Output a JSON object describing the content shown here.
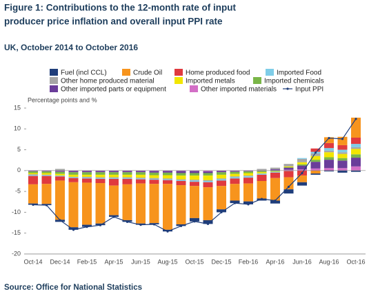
{
  "chart_data": {
    "type": "bar",
    "title": [
      "Figure 1: Contributions to the 12-month rate of input",
      "producer price inflation and overall input PPI rate"
    ],
    "subtitle": "UK, October 2014 to October 2016",
    "y_label": "Percentage points and %",
    "source": "Source: Office for National Statistics",
    "categories": [
      "Oct-14",
      null,
      "Dec-14",
      null,
      "Feb-15",
      null,
      "Apr-15",
      null,
      "Jun-15",
      null,
      "Aug-15",
      null,
      "Oct-15",
      null,
      "Dec-15",
      null,
      "Feb-16",
      null,
      "Apr-16",
      null,
      "Jun-16",
      null,
      "Aug-16",
      null,
      "Oct-16"
    ],
    "ylim": [
      -20,
      15
    ],
    "yticks": [
      15,
      10,
      5,
      0,
      -5,
      -10,
      -15,
      -20
    ],
    "grid": false,
    "series": [
      {
        "name": "Fuel (incl CCL)",
        "color": "#1f3d7a",
        "values": [
          -0.3,
          -0.3,
          -0.5,
          -0.6,
          -0.5,
          -0.4,
          -0.4,
          -0.4,
          -0.3,
          -0.3,
          -0.4,
          -0.4,
          -0.8,
          -0.9,
          -0.7,
          -0.6,
          -0.7,
          -0.5,
          -0.7,
          -1.0,
          -0.8,
          -0.3,
          -0.2,
          -0.5,
          -0.3
        ]
      },
      {
        "name": "Crude Oil",
        "color": "#f7941d",
        "values": [
          -4.6,
          -4.8,
          -9.4,
          -10.8,
          -10.1,
          -9.7,
          -7.1,
          -8.6,
          -9.6,
          -9.4,
          -11.0,
          -9.4,
          -7.7,
          -7.9,
          -5.6,
          -4.0,
          -4.3,
          -4.2,
          -5.4,
          -2.9,
          -1.6,
          -0.7,
          1.4,
          2.0,
          4.8
        ]
      },
      {
        "name": "Home produced food",
        "color": "#e03a3e",
        "values": [
          -2.0,
          -1.9,
          -1.0,
          -1.0,
          -1.0,
          -1.0,
          -1.6,
          -1.3,
          -1.0,
          -1.0,
          -0.9,
          -1.0,
          -1.0,
          -1.2,
          -1.3,
          -1.3,
          -1.4,
          -1.5,
          -1.3,
          -1.5,
          -1.2,
          0.8,
          1.2,
          1.1,
          1.5
        ]
      },
      {
        "name": "Imported Food",
        "color": "#7fcde8",
        "values": [
          -0.2,
          -0.2,
          -0.2,
          -0.2,
          -0.2,
          -0.2,
          -0.2,
          -0.2,
          -0.2,
          -0.2,
          -0.2,
          -0.2,
          -0.3,
          -0.3,
          -0.3,
          -0.3,
          -0.3,
          -0.3,
          -0.2,
          -0.1,
          0.2,
          0.4,
          0.6,
          0.6,
          0.8
        ]
      },
      {
        "name": "Other home produced material",
        "color": "#a6a6a6",
        "values": [
          -0.2,
          -0.1,
          0.4,
          -0.1,
          -0.2,
          -0.2,
          -0.2,
          -0.2,
          -0.2,
          -0.2,
          -0.2,
          -0.2,
          -0.2,
          -0.2,
          -0.2,
          -0.2,
          -0.2,
          0.3,
          0.4,
          0.6,
          0.8,
          0.6,
          0.4,
          0.4,
          0.4
        ]
      },
      {
        "name": "Imported metals",
        "color": "#f2e600",
        "values": [
          -0.3,
          -0.4,
          -0.4,
          -0.5,
          -0.5,
          -0.6,
          -0.6,
          -0.6,
          -0.7,
          -0.7,
          -0.8,
          -0.9,
          -1.0,
          -1.1,
          -0.9,
          -0.6,
          -0.6,
          -0.3,
          -0.1,
          0.2,
          0.5,
          0.9,
          1.2,
          1.0,
          1.3
        ]
      },
      {
        "name": "Imported chemicals",
        "color": "#7ab648",
        "values": [
          -0.4,
          -0.4,
          -0.5,
          -0.6,
          -0.6,
          -0.6,
          -0.6,
          -0.6,
          -0.6,
          -0.6,
          -0.6,
          -0.6,
          -0.6,
          -0.6,
          -0.6,
          -0.5,
          -0.4,
          -0.3,
          -0.2,
          0.1,
          0.3,
          0.5,
          0.6,
          0.6,
          0.8
        ]
      },
      {
        "name": "Other imported parts or equipment",
        "color": "#6a3d9a",
        "values": [
          -0.1,
          -0.1,
          -0.2,
          -0.3,
          -0.3,
          -0.3,
          -0.3,
          -0.3,
          -0.3,
          -0.4,
          -0.4,
          -0.5,
          -0.5,
          -0.4,
          -0.3,
          -0.2,
          -0.1,
          0.1,
          0.2,
          0.5,
          0.9,
          1.6,
          2.0,
          1.8,
          2.1
        ]
      },
      {
        "name": "Other imported materials",
        "color": "#d36fc6",
        "values": [
          -0.1,
          -0.1,
          -0.1,
          -0.1,
          -0.1,
          -0.1,
          -0.1,
          -0.1,
          -0.1,
          -0.1,
          -0.1,
          -0.1,
          -0.1,
          -0.2,
          -0.1,
          -0.1,
          -0.1,
          -0.1,
          0.1,
          0.2,
          0.3,
          0.5,
          0.6,
          0.6,
          1.0
        ]
      }
    ],
    "line": {
      "name": "Input PPI",
      "color": "#1f3d7a",
      "values": [
        -8.2,
        -8.3,
        -11.9,
        -14.2,
        -13.5,
        -13.1,
        -11.1,
        -12.3,
        -13.0,
        -12.9,
        -14.6,
        -13.3,
        -12.2,
        -12.8,
        -10.0,
        -7.8,
        -8.1,
        -6.8,
        -7.2,
        -3.9,
        -0.6,
        4.3,
        7.8,
        7.6,
        12.4
      ]
    }
  }
}
